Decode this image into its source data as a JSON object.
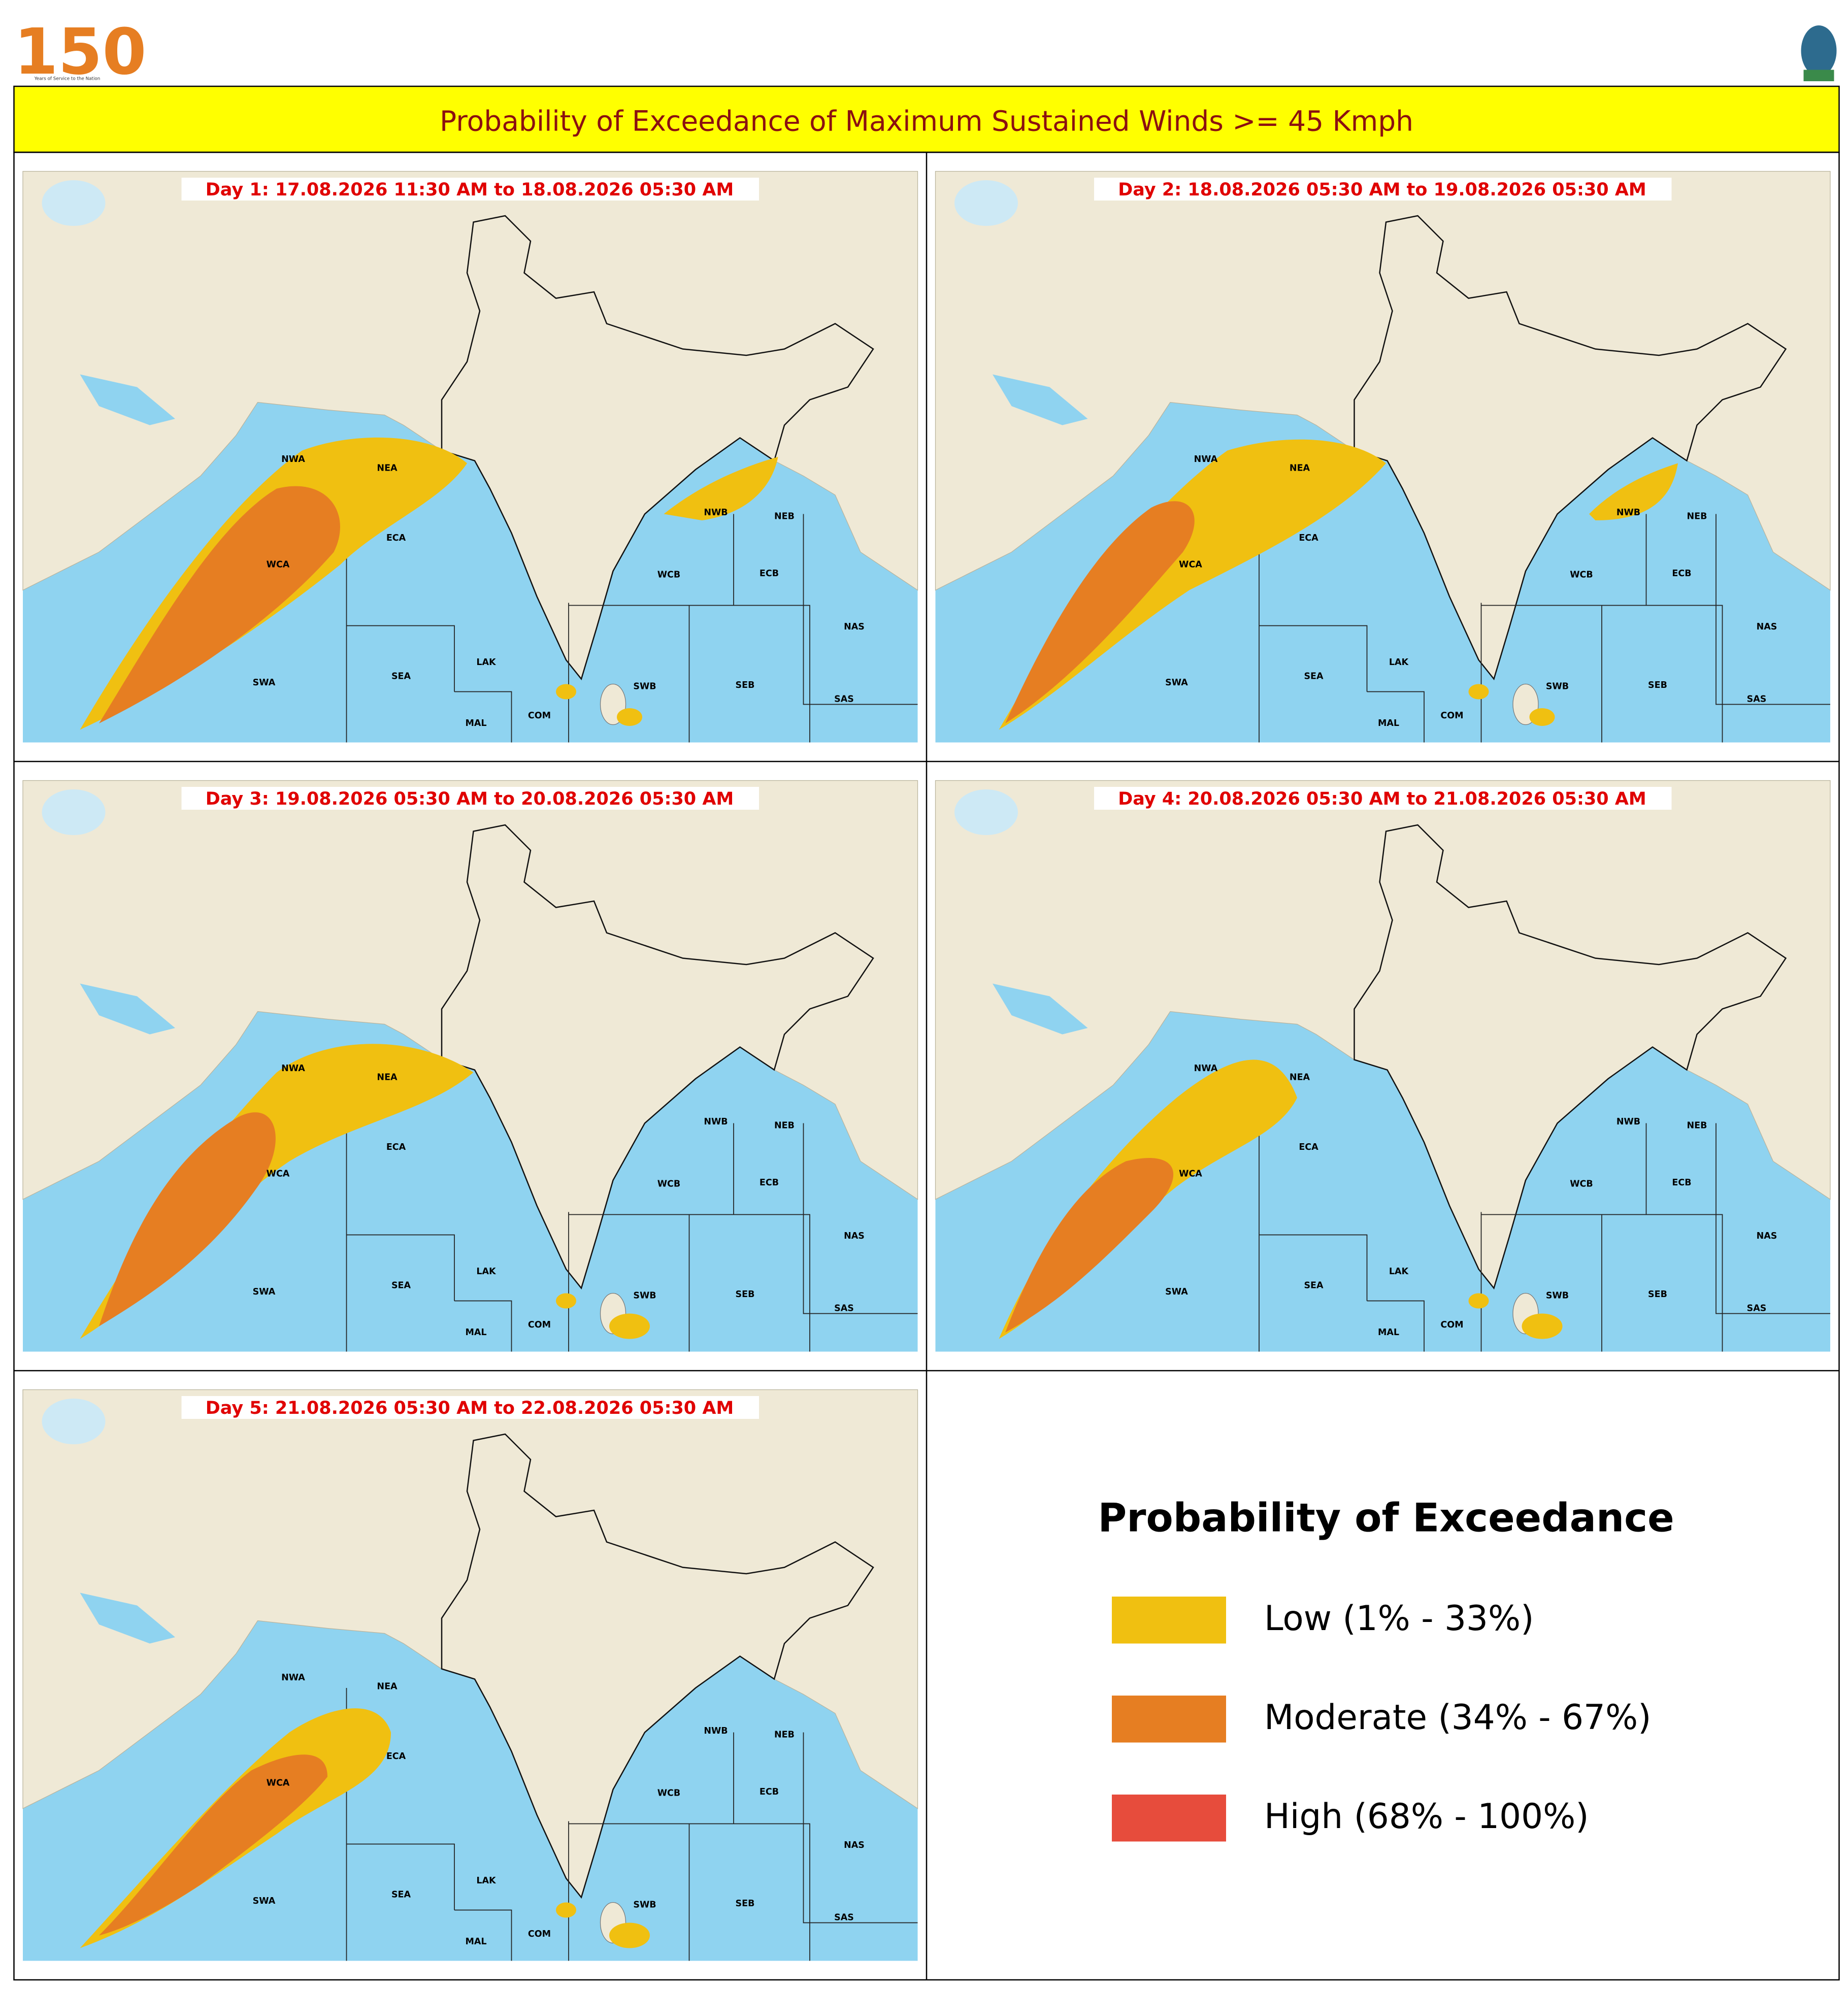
{
  "logo": {
    "number": "150",
    "tagline": "Years of Service to the Nation"
  },
  "header": {
    "title": "Probability of Exceedance of Maximum Sustained Winds >= 45 Kmph"
  },
  "panels": [
    {
      "title": "Day 1: 17.08.2026 11:30 AM to 18.08.2026 05:30 AM"
    },
    {
      "title": "Day 2: 18.08.2026 05:30 AM to 19.08.2026 05:30 AM"
    },
    {
      "title": "Day 3: 19.08.2026 05:30 AM to 20.08.2026 05:30 AM"
    },
    {
      "title": "Day 4: 20.08.2026 05:30 AM to 21.08.2026 05:30 AM"
    },
    {
      "title": "Day 5: 21.08.2026 05:30 AM to 22.08.2026 05:30 AM"
    }
  ],
  "regions": [
    "NWA",
    "NEA",
    "ECA",
    "WCA",
    "SWA",
    "SEA",
    "LAK",
    "MAL",
    "COM",
    "SWB",
    "SEB",
    "NWB",
    "NEB",
    "ECB",
    "WCB",
    "NAS",
    "SAS"
  ],
  "legend": {
    "title": "Probability of Exceedance",
    "items": [
      {
        "label": "Low (1% - 33%)",
        "color": "#f0c011"
      },
      {
        "label": "Moderate (34% - 67%)",
        "color": "#e67e22"
      },
      {
        "label": "High (68% - 100%)",
        "color": "#e74c3c"
      }
    ]
  }
}
